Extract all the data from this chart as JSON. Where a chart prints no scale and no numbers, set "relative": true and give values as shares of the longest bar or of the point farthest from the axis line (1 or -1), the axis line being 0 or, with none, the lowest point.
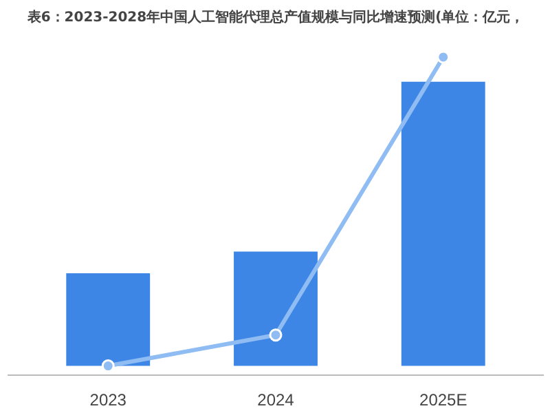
{
  "chart_data": {
    "type": "bar",
    "title": "表6：2023-2028年中国人工智能代理总产值规模与同比增速预测(单位：亿元，",
    "categories": [
      "2023",
      "2024",
      "2025E"
    ],
    "relative": true,
    "grid": false,
    "series": [
      {
        "color": "#3d86e6",
        "values": [
          0.3,
          0.37,
          0.92
        ]
      },
      {
        "type": "line",
        "color": "#8fbcf2",
        "values": [
          0,
          0.1,
          1
        ],
        "marker": "circle"
      }
    ]
  }
}
